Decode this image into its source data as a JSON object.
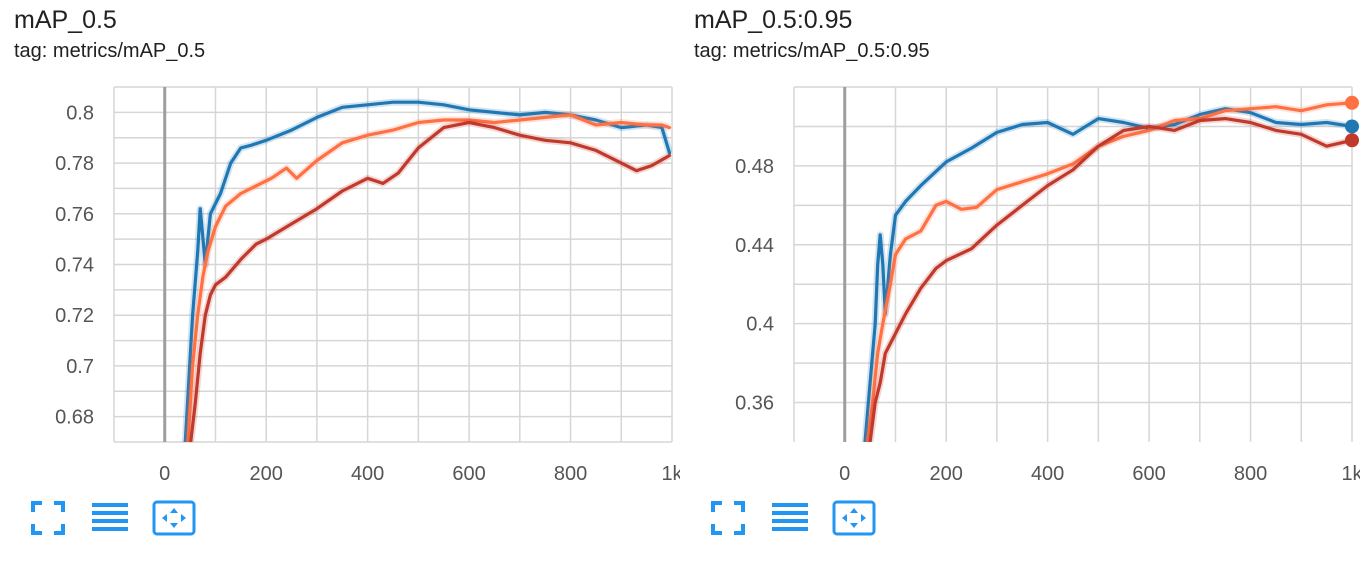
{
  "cards": [
    {
      "title": "mAP_0.5",
      "tag": "tag: metrics/mAP_0.5",
      "toolbar": {
        "icons": [
          "fullscreen-icon",
          "data-table-icon",
          "fit-domain-icon"
        ]
      }
    },
    {
      "title": "mAP_0.5:0.95",
      "tag": "tag: metrics/mAP_0.5:0.95",
      "toolbar": {
        "icons": [
          "fullscreen-icon",
          "data-table-icon",
          "fit-domain-icon"
        ]
      }
    }
  ],
  "colors": {
    "blue": "#1f77b4",
    "orange": "#ff7043",
    "red": "#c0392b",
    "grid": "#d6d6d6",
    "axis_zero": "#9e9e9e"
  },
  "chart_data": [
    {
      "type": "line",
      "title": "mAP_0.5",
      "xlim": [
        -100,
        1000
      ],
      "ylim": [
        0.67,
        0.81
      ],
      "x_ticks": [
        0,
        200,
        400,
        600,
        800,
        1000
      ],
      "x_tick_labels": [
        "0",
        "200",
        "400",
        "600",
        "800",
        "1k"
      ],
      "y_ticks": [
        0.68,
        0.7,
        0.72,
        0.74,
        0.76,
        0.78,
        0.8
      ],
      "y_tick_labels": [
        "0.68",
        "0.7",
        "0.72",
        "0.74",
        "0.76",
        "0.78",
        "0.8"
      ],
      "grid": true,
      "series": [
        {
          "color": "#1f77b4",
          "x": [
            40,
            55,
            65,
            70,
            80,
            90,
            110,
            130,
            150,
            170,
            200,
            250,
            300,
            350,
            400,
            450,
            500,
            550,
            600,
            650,
            700,
            750,
            800,
            850,
            900,
            950,
            980,
            995
          ],
          "y": [
            0.668,
            0.72,
            0.745,
            0.762,
            0.74,
            0.76,
            0.768,
            0.78,
            0.786,
            0.787,
            0.789,
            0.793,
            0.798,
            0.802,
            0.803,
            0.804,
            0.804,
            0.803,
            0.801,
            0.8,
            0.799,
            0.8,
            0.799,
            0.797,
            0.794,
            0.795,
            0.794,
            0.784
          ]
        },
        {
          "color": "#ff7043",
          "x": [
            45,
            55,
            65,
            75,
            85,
            100,
            120,
            150,
            180,
            210,
            240,
            260,
            300,
            350,
            400,
            450,
            500,
            550,
            600,
            650,
            700,
            750,
            800,
            850,
            900,
            950,
            980,
            995
          ],
          "y": [
            0.668,
            0.7,
            0.72,
            0.735,
            0.745,
            0.755,
            0.763,
            0.768,
            0.771,
            0.774,
            0.778,
            0.774,
            0.781,
            0.788,
            0.791,
            0.793,
            0.796,
            0.797,
            0.797,
            0.796,
            0.797,
            0.798,
            0.799,
            0.795,
            0.796,
            0.795,
            0.795,
            0.794
          ]
        },
        {
          "color": "#c0392b",
          "x": [
            50,
            60,
            70,
            80,
            90,
            100,
            120,
            150,
            180,
            200,
            250,
            300,
            350,
            400,
            430,
            460,
            500,
            550,
            600,
            650,
            700,
            750,
            800,
            850,
            900,
            930,
            960,
            995
          ],
          "y": [
            0.668,
            0.685,
            0.705,
            0.72,
            0.728,
            0.732,
            0.735,
            0.742,
            0.748,
            0.75,
            0.756,
            0.762,
            0.769,
            0.774,
            0.772,
            0.776,
            0.786,
            0.794,
            0.796,
            0.794,
            0.791,
            0.789,
            0.788,
            0.785,
            0.78,
            0.777,
            0.779,
            0.783
          ]
        }
      ]
    },
    {
      "type": "line",
      "title": "mAP_0.5:0.95",
      "xlim": [
        -100,
        1000
      ],
      "ylim": [
        0.34,
        0.52
      ],
      "x_ticks": [
        0,
        200,
        400,
        600,
        800,
        1000
      ],
      "x_tick_labels": [
        "0",
        "200",
        "400",
        "600",
        "800",
        "1k"
      ],
      "y_ticks": [
        0.36,
        0.4,
        0.44,
        0.48
      ],
      "y_tick_labels": [
        "0.36",
        "0.4",
        "0.44",
        "0.48"
      ],
      "grid": true,
      "series": [
        {
          "color": "#1f77b4",
          "x": [
            40,
            50,
            60,
            65,
            70,
            75,
            80,
            90,
            100,
            120,
            150,
            200,
            250,
            300,
            350,
            400,
            450,
            500,
            550,
            600,
            650,
            700,
            750,
            800,
            850,
            900,
            950,
            1000
          ],
          "y": [
            0.34,
            0.37,
            0.4,
            0.43,
            0.445,
            0.43,
            0.405,
            0.435,
            0.455,
            0.462,
            0.47,
            0.482,
            0.489,
            0.497,
            0.501,
            0.502,
            0.496,
            0.504,
            0.502,
            0.499,
            0.501,
            0.506,
            0.509,
            0.507,
            0.502,
            0.501,
            0.502,
            0.5
          ]
        },
        {
          "color": "#ff7043",
          "x": [
            45,
            55,
            65,
            75,
            90,
            100,
            120,
            150,
            180,
            200,
            230,
            260,
            300,
            350,
            400,
            450,
            500,
            550,
            600,
            650,
            700,
            750,
            800,
            850,
            900,
            950,
            1000
          ],
          "y": [
            0.34,
            0.36,
            0.385,
            0.4,
            0.42,
            0.435,
            0.443,
            0.447,
            0.46,
            0.462,
            0.458,
            0.459,
            0.468,
            0.472,
            0.476,
            0.481,
            0.49,
            0.495,
            0.498,
            0.503,
            0.504,
            0.508,
            0.509,
            0.51,
            0.508,
            0.511,
            0.512
          ]
        },
        {
          "color": "#c0392b",
          "x": [
            50,
            60,
            70,
            80,
            90,
            100,
            120,
            150,
            180,
            200,
            250,
            300,
            350,
            400,
            450,
            500,
            550,
            600,
            650,
            700,
            750,
            800,
            850,
            900,
            950,
            1000
          ],
          "y": [
            0.34,
            0.36,
            0.37,
            0.385,
            0.39,
            0.395,
            0.405,
            0.418,
            0.428,
            0.432,
            0.438,
            0.45,
            0.46,
            0.47,
            0.478,
            0.49,
            0.498,
            0.5,
            0.498,
            0.503,
            0.504,
            0.502,
            0.498,
            0.496,
            0.49,
            0.493
          ]
        }
      ]
    }
  ]
}
